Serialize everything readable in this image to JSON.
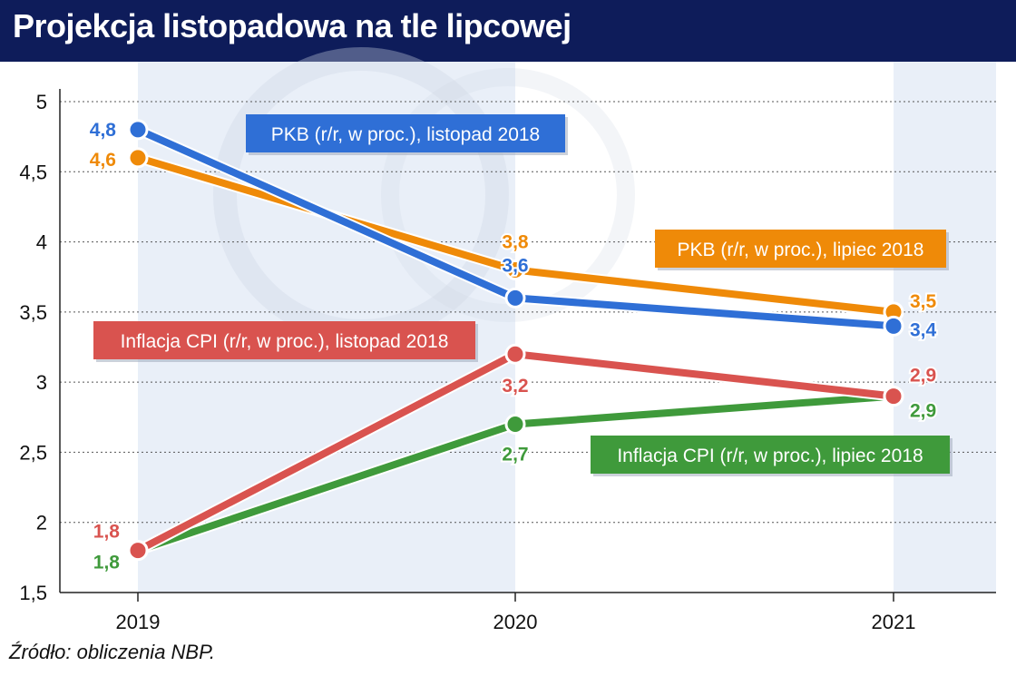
{
  "header": {
    "title": "Projekcja listopadowa na tle lipcowej"
  },
  "footer": {
    "source": "Źródło: obliczenia NBP."
  },
  "colors": {
    "header_bg": "#0e1c5a",
    "band": "#e9eff8",
    "blue": "#2f6fd6",
    "orange": "#ef8a08",
    "red": "#d9534f",
    "green": "#3f9a3b"
  },
  "chart_data": {
    "type": "line",
    "title": "Projekcja listopadowa na tle lipcowej",
    "xlabel": "",
    "ylabel": "",
    "categories": [
      "2019",
      "2020",
      "2021"
    ],
    "ylim": [
      1.5,
      5
    ],
    "yticks": [
      "1,5",
      "2",
      "2,5",
      "3",
      "3,5",
      "4",
      "4,5",
      "5"
    ],
    "grid": true,
    "series": [
      {
        "name": "PKB (r/r, w proc.), listopad 2018",
        "color": "#2f6fd6",
        "values": [
          4.8,
          3.6,
          3.4
        ],
        "labels": [
          "4,8",
          "3,6",
          "3,4"
        ]
      },
      {
        "name": "PKB (r/r, w proc.), lipiec 2018",
        "color": "#ef8a08",
        "values": [
          4.6,
          3.8,
          3.5
        ],
        "labels": [
          "4,6",
          "3,8",
          "3,5"
        ]
      },
      {
        "name": "Inflacja CPI (r/r, w proc.), listopad 2018",
        "color": "#d9534f",
        "values": [
          1.8,
          3.2,
          2.9
        ],
        "labels": [
          "1,8",
          "3,2",
          "2,9"
        ]
      },
      {
        "name": "Inflacja CPI (r/r, w proc.), lipiec 2018",
        "color": "#3f9a3b",
        "values": [
          1.8,
          2.7,
          2.9
        ],
        "labels": [
          "1,8",
          "2,7",
          "2,9"
        ]
      }
    ]
  }
}
